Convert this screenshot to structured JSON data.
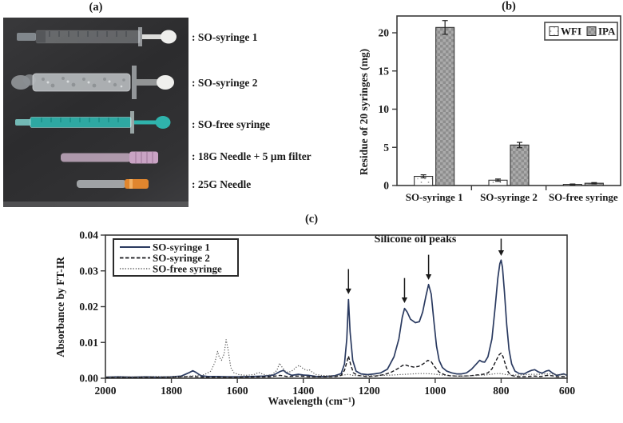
{
  "figure": {
    "panel_a": {
      "title": "(a)",
      "items": [
        {
          "label": ": SO-syringe 1"
        },
        {
          "label": ": SO-syringe 2"
        },
        {
          "label": ": SO-free syringe"
        },
        {
          "label": ": 18G Needle + 5 µm filter"
        },
        {
          "label": ": 25G Needle"
        }
      ],
      "colors": {
        "photo_background": "#2f2f31",
        "so_free_teal": "#2fb3ac",
        "needle18_pink": "#c9a3c4",
        "needle18_cap": "#d8bcd4",
        "needle25_orange": "#e0862e",
        "plunger_white": "#efefed",
        "frosted_silver": "#b6babd",
        "clear_barrel": "#dce2e6"
      }
    }
  },
  "chart_data": [
    {
      "id": "residue-bar-chart",
      "type": "bar",
      "title": "(b)",
      "categories": [
        "SO-syringe 1",
        "SO-syringe 2",
        "SO-free syringe"
      ],
      "series": [
        {
          "name": "WFI",
          "style": "white-dotted",
          "values": [
            1.2,
            0.7,
            0.15
          ],
          "errors": [
            0.2,
            0.15,
            0.05
          ]
        },
        {
          "name": "IPA",
          "style": "gray-checker",
          "values": [
            20.7,
            5.3,
            0.3
          ],
          "errors": [
            0.9,
            0.35,
            0.08
          ]
        }
      ],
      "ylabel": "Residue of  20 syringes (mg)",
      "yticks": [
        0,
        5,
        10,
        15,
        20
      ],
      "ylim": [
        0,
        22.2
      ],
      "legend_position": "top-right",
      "grid": false
    },
    {
      "id": "ftir-line-chart",
      "type": "line",
      "title": "(c)",
      "xlabel": "Wavelength (cm⁻¹)",
      "ylabel": "Absorbance by FT-IR",
      "xlim": [
        2000,
        600
      ],
      "ylim": [
        0,
        0.04
      ],
      "xticks": [
        2000,
        1800,
        1600,
        1400,
        1200,
        1000,
        800,
        600
      ],
      "ytick_labels": [
        "0.00",
        "0.01",
        "0.02",
        "0.03",
        "0.04"
      ],
      "annotation": "Silicone oil peaks",
      "legend_position": "top-left",
      "arrows": [
        {
          "x": 1263,
          "y_tip": 0.0235,
          "y_tail": 0.0305
        },
        {
          "x": 1093,
          "y_tip": 0.021,
          "y_tail": 0.028
        },
        {
          "x": 1020,
          "y_tip": 0.0275,
          "y_tail": 0.0345
        },
        {
          "x": 800,
          "y_tip": 0.0342,
          "y_tail": 0.039
        }
      ],
      "series": [
        {
          "name": "SO-syringe 1",
          "dash": "solid",
          "color": "#2a3a60",
          "points": [
            [
              2000,
              0.0003
            ],
            [
              1960,
              0.0004
            ],
            [
              1920,
              0.0003
            ],
            [
              1880,
              0.0004
            ],
            [
              1840,
              0.0003
            ],
            [
              1800,
              0.0004
            ],
            [
              1770,
              0.0006
            ],
            [
              1745,
              0.0016
            ],
            [
              1735,
              0.0021
            ],
            [
              1725,
              0.0016
            ],
            [
              1710,
              0.0007
            ],
            [
              1690,
              0.0005
            ],
            [
              1660,
              0.0005
            ],
            [
              1630,
              0.0004
            ],
            [
              1600,
              0.0004
            ],
            [
              1560,
              0.0005
            ],
            [
              1520,
              0.0006
            ],
            [
              1490,
              0.0009
            ],
            [
              1470,
              0.0019
            ],
            [
              1460,
              0.0022
            ],
            [
              1450,
              0.0014
            ],
            [
              1435,
              0.0008
            ],
            [
              1415,
              0.0011
            ],
            [
              1400,
              0.0009
            ],
            [
              1385,
              0.0008
            ],
            [
              1360,
              0.0005
            ],
            [
              1330,
              0.0005
            ],
            [
              1305,
              0.0007
            ],
            [
              1285,
              0.0013
            ],
            [
              1275,
              0.004
            ],
            [
              1268,
              0.011
            ],
            [
              1263,
              0.022
            ],
            [
              1258,
              0.013
            ],
            [
              1250,
              0.005
            ],
            [
              1240,
              0.002
            ],
            [
              1225,
              0.0012
            ],
            [
              1205,
              0.001
            ],
            [
              1185,
              0.0012
            ],
            [
              1165,
              0.0015
            ],
            [
              1145,
              0.0025
            ],
            [
              1125,
              0.006
            ],
            [
              1110,
              0.011
            ],
            [
              1100,
              0.017
            ],
            [
              1093,
              0.0195
            ],
            [
              1085,
              0.0185
            ],
            [
              1075,
              0.0165
            ],
            [
              1060,
              0.0155
            ],
            [
              1048,
              0.0158
            ],
            [
              1038,
              0.0185
            ],
            [
              1028,
              0.023
            ],
            [
              1020,
              0.0262
            ],
            [
              1012,
              0.0235
            ],
            [
              1004,
              0.016
            ],
            [
              996,
              0.009
            ],
            [
              988,
              0.005
            ],
            [
              978,
              0.003
            ],
            [
              965,
              0.002
            ],
            [
              950,
              0.0015
            ],
            [
              935,
              0.0012
            ],
            [
              920,
              0.0012
            ],
            [
              905,
              0.0015
            ],
            [
              890,
              0.0025
            ],
            [
              875,
              0.004
            ],
            [
              865,
              0.005
            ],
            [
              858,
              0.0046
            ],
            [
              850,
              0.0045
            ],
            [
              840,
              0.006
            ],
            [
              828,
              0.011
            ],
            [
              818,
              0.02
            ],
            [
              810,
              0.028
            ],
            [
              804,
              0.032
            ],
            [
              800,
              0.033
            ],
            [
              796,
              0.031
            ],
            [
              790,
              0.024
            ],
            [
              783,
              0.015
            ],
            [
              776,
              0.008
            ],
            [
              768,
              0.004
            ],
            [
              758,
              0.002
            ],
            [
              745,
              0.0013
            ],
            [
              730,
              0.0012
            ],
            [
              718,
              0.0018
            ],
            [
              708,
              0.0022
            ],
            [
              698,
              0.0024
            ],
            [
              688,
              0.0018
            ],
            [
              676,
              0.0014
            ],
            [
              664,
              0.002
            ],
            [
              655,
              0.0022
            ],
            [
              645,
              0.0015
            ],
            [
              632,
              0.0008
            ],
            [
              620,
              0.001
            ],
            [
              610,
              0.0012
            ],
            [
              600,
              0.0008
            ]
          ]
        },
        {
          "name": "SO-syringe 2",
          "dash": "dashed",
          "color": "#15151a",
          "points": [
            [
              2000,
              0.0002
            ],
            [
              1900,
              0.0002
            ],
            [
              1800,
              0.0003
            ],
            [
              1740,
              0.0005
            ],
            [
              1700,
              0.0003
            ],
            [
              1600,
              0.0003
            ],
            [
              1500,
              0.0004
            ],
            [
              1470,
              0.0008
            ],
            [
              1450,
              0.0005
            ],
            [
              1410,
              0.0006
            ],
            [
              1380,
              0.0004
            ],
            [
              1330,
              0.0004
            ],
            [
              1300,
              0.0005
            ],
            [
              1285,
              0.0008
            ],
            [
              1275,
              0.0022
            ],
            [
              1268,
              0.0045
            ],
            [
              1263,
              0.0062
            ],
            [
              1257,
              0.004
            ],
            [
              1248,
              0.0015
            ],
            [
              1235,
              0.0008
            ],
            [
              1210,
              0.0005
            ],
            [
              1180,
              0.0006
            ],
            [
              1155,
              0.001
            ],
            [
              1135,
              0.0016
            ],
            [
              1115,
              0.0026
            ],
            [
              1100,
              0.0035
            ],
            [
              1093,
              0.0038
            ],
            [
              1080,
              0.0034
            ],
            [
              1065,
              0.0031
            ],
            [
              1050,
              0.0033
            ],
            [
              1035,
              0.0041
            ],
            [
              1022,
              0.005
            ],
            [
              1012,
              0.0046
            ],
            [
              1000,
              0.003
            ],
            [
              988,
              0.0017
            ],
            [
              972,
              0.001
            ],
            [
              955,
              0.0007
            ],
            [
              935,
              0.0006
            ],
            [
              915,
              0.0006
            ],
            [
              895,
              0.0007
            ],
            [
              875,
              0.0009
            ],
            [
              855,
              0.0011
            ],
            [
              840,
              0.0015
            ],
            [
              828,
              0.0026
            ],
            [
              816,
              0.0048
            ],
            [
              806,
              0.0066
            ],
            [
              800,
              0.007
            ],
            [
              794,
              0.006
            ],
            [
              786,
              0.0035
            ],
            [
              778,
              0.0016
            ],
            [
              768,
              0.0008
            ],
            [
              755,
              0.0005
            ],
            [
              740,
              0.0004
            ],
            [
              720,
              0.0005
            ],
            [
              700,
              0.0006
            ],
            [
              680,
              0.0005
            ],
            [
              660,
              0.0008
            ],
            [
              645,
              0.0007
            ],
            [
              630,
              0.0004
            ],
            [
              615,
              0.0005
            ],
            [
              600,
              0.0004
            ]
          ]
        },
        {
          "name": "SO-free syringe",
          "dash": "dotted",
          "color": "#5e5e5e",
          "points": [
            [
              2000,
              0.0004
            ],
            [
              1950,
              0.0004
            ],
            [
              1900,
              0.0004
            ],
            [
              1850,
              0.0005
            ],
            [
              1800,
              0.0004
            ],
            [
              1760,
              0.0005
            ],
            [
              1730,
              0.0007
            ],
            [
              1700,
              0.001
            ],
            [
              1680,
              0.002
            ],
            [
              1668,
              0.0045
            ],
            [
              1660,
              0.0075
            ],
            [
              1655,
              0.006
            ],
            [
              1648,
              0.005
            ],
            [
              1640,
              0.0068
            ],
            [
              1634,
              0.0108
            ],
            [
              1628,
              0.008
            ],
            [
              1620,
              0.003
            ],
            [
              1610,
              0.0015
            ],
            [
              1595,
              0.001
            ],
            [
              1575,
              0.0008
            ],
            [
              1550,
              0.001
            ],
            [
              1535,
              0.0016
            ],
            [
              1525,
              0.0012
            ],
            [
              1510,
              0.0008
            ],
            [
              1495,
              0.001
            ],
            [
              1480,
              0.0022
            ],
            [
              1472,
              0.0042
            ],
            [
              1465,
              0.0032
            ],
            [
              1455,
              0.002
            ],
            [
              1445,
              0.0016
            ],
            [
              1432,
              0.0022
            ],
            [
              1420,
              0.0032
            ],
            [
              1412,
              0.0036
            ],
            [
              1402,
              0.0028
            ],
            [
              1390,
              0.0022
            ],
            [
              1382,
              0.0024
            ],
            [
              1372,
              0.0016
            ],
            [
              1360,
              0.001
            ],
            [
              1345,
              0.0008
            ],
            [
              1325,
              0.0007
            ],
            [
              1305,
              0.0007
            ],
            [
              1285,
              0.0008
            ],
            [
              1270,
              0.001
            ],
            [
              1263,
              0.0011
            ],
            [
              1250,
              0.0008
            ],
            [
              1230,
              0.0007
            ],
            [
              1210,
              0.0007
            ],
            [
              1190,
              0.0007
            ],
            [
              1170,
              0.0008
            ],
            [
              1150,
              0.0008
            ],
            [
              1130,
              0.0009
            ],
            [
              1110,
              0.001
            ],
            [
              1090,
              0.0011
            ],
            [
              1070,
              0.0012
            ],
            [
              1050,
              0.0013
            ],
            [
              1030,
              0.0013
            ],
            [
              1010,
              0.0012
            ],
            [
              990,
              0.001
            ],
            [
              970,
              0.0008
            ],
            [
              950,
              0.0007
            ],
            [
              930,
              0.0006
            ],
            [
              910,
              0.0006
            ],
            [
              890,
              0.0007
            ],
            [
              870,
              0.0008
            ],
            [
              850,
              0.0009
            ],
            [
              830,
              0.0011
            ],
            [
              815,
              0.0013
            ],
            [
              800,
              0.0013
            ],
            [
              785,
              0.001
            ],
            [
              765,
              0.0009
            ],
            [
              745,
              0.0009
            ],
            [
              725,
              0.001
            ],
            [
              705,
              0.0011
            ],
            [
              685,
              0.0011
            ],
            [
              665,
              0.0012
            ],
            [
              645,
              0.0012
            ],
            [
              625,
              0.001
            ],
            [
              610,
              0.001
            ],
            [
              600,
              0.001
            ]
          ]
        }
      ]
    }
  ]
}
